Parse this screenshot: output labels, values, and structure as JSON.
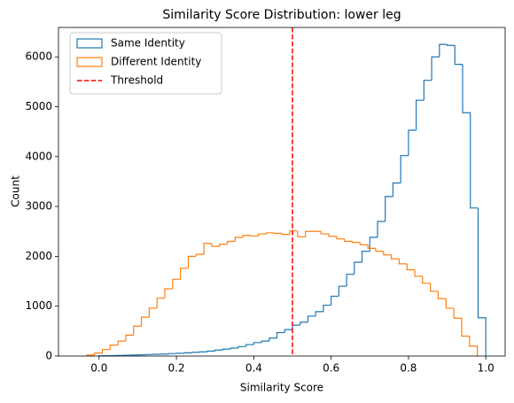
{
  "chart_data": {
    "type": "histogram",
    "title": "Similarity Score Distribution: lower leg",
    "xlabel": "Similarity Score",
    "ylabel": "Count",
    "xlim": [
      -0.105,
      1.05
    ],
    "ylim": [
      0,
      6590
    ],
    "xticks": [
      {
        "value": 0,
        "label": "0.0"
      },
      0.2,
      0.4,
      0.6,
      0.8,
      {
        "value": 1,
        "label": "1.0"
      }
    ],
    "yticks": [
      0,
      1000,
      2000,
      3000,
      4000,
      5000,
      6000
    ],
    "legend": "upper left",
    "series": [
      {
        "name": "Same Identity",
        "color": "#1f77b4",
        "bins": [
          0,
          0.02,
          0.04,
          0.06,
          0.08,
          0.1,
          0.12,
          0.14,
          0.16,
          0.18,
          0.2,
          0.22,
          0.24,
          0.26,
          0.28,
          0.3,
          0.32,
          0.34,
          0.36,
          0.38,
          0.4,
          0.42,
          0.44,
          0.46,
          0.48,
          0.5,
          0.52,
          0.54,
          0.56,
          0.58,
          0.6,
          0.62,
          0.64,
          0.66,
          0.68,
          0.7,
          0.72,
          0.74,
          0.76,
          0.78,
          0.8,
          0.82,
          0.84,
          0.86,
          0.88,
          0.9,
          0.92,
          0.94,
          0.96,
          0.98,
          1
        ],
        "values": [
          5,
          8,
          12,
          15,
          20,
          25,
          30,
          35,
          40,
          50,
          55,
          65,
          75,
          85,
          100,
          120,
          140,
          160,
          190,
          230,
          270,
          300,
          360,
          470,
          530,
          620,
          680,
          800,
          890,
          1020,
          1200,
          1400,
          1640,
          1880,
          2100,
          2380,
          2700,
          3200,
          3470,
          4020,
          4530,
          5130,
          5530,
          6000,
          6250,
          6230,
          5850,
          4880,
          2970,
          768
        ]
      },
      {
        "name": "Different Identity",
        "color": "#ff7f0e",
        "bins": [
          -0.032,
          -0.0118,
          0.0084,
          0.0286,
          0.0488,
          0.069,
          0.0892,
          0.1094,
          0.1296,
          0.1498,
          0.17,
          0.1902,
          0.2104,
          0.2306,
          0.2508,
          0.271,
          0.2912,
          0.3114,
          0.3316,
          0.3518,
          0.372,
          0.3922,
          0.4124,
          0.4326,
          0.4528,
          0.473,
          0.4932,
          0.5134,
          0.5336,
          0.5538,
          0.574,
          0.5942,
          0.6144,
          0.6346,
          0.6548,
          0.675,
          0.6952,
          0.7154,
          0.7356,
          0.7558,
          0.776,
          0.7962,
          0.8164,
          0.8366,
          0.8568,
          0.877,
          0.8972,
          0.9174,
          0.9376,
          0.9578,
          0.978
        ],
        "values": [
          20,
          60,
          130,
          220,
          300,
          420,
          600,
          780,
          960,
          1160,
          1350,
          1540,
          1760,
          2000,
          2040,
          2260,
          2200,
          2240,
          2300,
          2380,
          2420,
          2410,
          2450,
          2470,
          2460,
          2440,
          2510,
          2390,
          2500,
          2500,
          2450,
          2400,
          2350,
          2300,
          2280,
          2230,
          2160,
          2100,
          2030,
          1950,
          1850,
          1730,
          1600,
          1460,
          1300,
          1150,
          960,
          760,
          400,
          200
        ]
      }
    ],
    "threshold": {
      "name": "Threshold",
      "value": 0.5,
      "color": "#ff0000"
    }
  }
}
